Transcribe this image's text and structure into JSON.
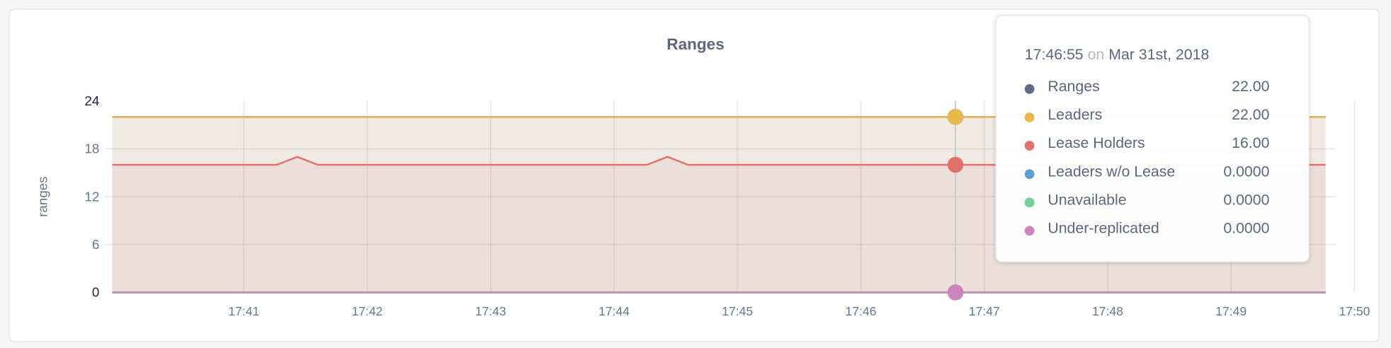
{
  "chart_data": {
    "type": "area",
    "title": "Ranges",
    "ylabel": "ranges",
    "xlabel": "",
    "ylim": [
      0,
      24
    ],
    "yticks": [
      "0",
      "6",
      "12",
      "18",
      "24"
    ],
    "xticks": [
      "17:41",
      "17:42",
      "17:43",
      "17:44",
      "17:45",
      "17:46",
      "17:47",
      "17:48",
      "17:49",
      "17:50"
    ],
    "grid": true,
    "x": [
      "17:40:05",
      "17:40:15",
      "17:40:25",
      "17:40:35",
      "17:40:45",
      "17:40:55",
      "17:41:05",
      "17:41:15",
      "17:41:25",
      "17:41:35",
      "17:41:45",
      "17:41:55",
      "17:42:05",
      "17:42:15",
      "17:42:25",
      "17:42:35",
      "17:42:45",
      "17:42:55",
      "17:43:05",
      "17:43:15",
      "17:43:25",
      "17:43:35",
      "17:43:45",
      "17:43:55",
      "17:44:05",
      "17:44:15",
      "17:44:25",
      "17:44:35",
      "17:44:45",
      "17:44:55",
      "17:45:05",
      "17:45:15",
      "17:45:25",
      "17:45:35",
      "17:45:45",
      "17:45:55",
      "17:46:05",
      "17:46:15",
      "17:46:25",
      "17:46:35",
      "17:46:45",
      "17:46:55",
      "17:47:05",
      "17:47:15",
      "17:47:25",
      "17:47:35",
      "17:47:45",
      "17:47:55",
      "17:48:05",
      "17:48:15",
      "17:48:25",
      "17:48:35",
      "17:48:45",
      "17:48:55",
      "17:49:05",
      "17:49:15",
      "17:49:25",
      "17:49:35",
      "17:49:45",
      "17:49:55"
    ],
    "series": [
      {
        "name": "Ranges",
        "color": "#5f6b87",
        "values": [
          22,
          22,
          22,
          22,
          22,
          22,
          22,
          22,
          22,
          22,
          22,
          22,
          22,
          22,
          22,
          22,
          22,
          22,
          22,
          22,
          22,
          22,
          22,
          22,
          22,
          22,
          22,
          22,
          22,
          22,
          22,
          22,
          22,
          22,
          22,
          22,
          22,
          22,
          22,
          22,
          22,
          22,
          22,
          22,
          22,
          22,
          22,
          22,
          22,
          22,
          22,
          22,
          22,
          22,
          22,
          22,
          22,
          22,
          22,
          22
        ]
      },
      {
        "name": "Leaders",
        "color": "#e8b94a",
        "fill": "#efebe4",
        "values": [
          22,
          22,
          22,
          22,
          22,
          22,
          22,
          22,
          22,
          22,
          22,
          22,
          22,
          22,
          22,
          22,
          22,
          22,
          22,
          22,
          22,
          22,
          22,
          22,
          22,
          22,
          22,
          22,
          22,
          22,
          22,
          22,
          22,
          22,
          22,
          22,
          22,
          22,
          22,
          22,
          22,
          22,
          22,
          22,
          22,
          22,
          22,
          22,
          22,
          22,
          22,
          22,
          22,
          22,
          22,
          22,
          22,
          22,
          22,
          22
        ]
      },
      {
        "name": "Lease Holders",
        "color": "#e2716d",
        "fill": "#ecdfd9",
        "values": [
          16,
          16,
          16,
          16,
          16,
          16,
          16,
          16,
          16,
          17,
          16,
          16,
          16,
          16,
          16,
          16,
          16,
          16,
          16,
          16,
          16,
          16,
          16,
          16,
          16,
          16,
          16,
          17,
          16,
          16,
          16,
          16,
          16,
          16,
          16,
          16,
          16,
          16,
          16,
          16,
          16,
          16,
          16,
          16,
          16,
          16,
          16,
          16,
          16,
          16,
          16,
          16,
          16,
          16,
          16,
          16,
          16,
          16,
          16,
          16
        ]
      },
      {
        "name": "Leaders w/o Lease",
        "color": "#5a9fd4",
        "values": [
          0,
          0,
          0,
          0,
          0,
          0,
          0,
          0,
          0,
          0,
          0,
          0,
          0,
          0,
          0,
          0,
          0,
          0,
          0,
          0,
          0,
          0,
          0,
          0,
          0,
          0,
          0,
          0,
          0,
          0,
          0,
          0,
          0,
          0,
          0,
          0,
          0,
          0,
          0,
          0,
          0,
          0,
          0,
          0,
          0,
          0,
          0,
          0,
          0,
          0,
          0,
          0,
          0,
          0,
          0,
          0,
          0,
          0,
          0,
          0
        ]
      },
      {
        "name": "Unavailable",
        "color": "#6fd38f",
        "values": [
          0,
          0,
          0,
          0,
          0,
          0,
          0,
          0,
          0,
          0,
          0,
          0,
          0,
          0,
          0,
          0,
          0,
          0,
          0,
          0,
          0,
          0,
          0,
          0,
          0,
          0,
          0,
          0,
          0,
          0,
          0,
          0,
          0,
          0,
          0,
          0,
          0,
          0,
          0,
          0,
          0,
          0,
          0,
          0,
          0,
          0,
          0,
          0,
          0,
          0,
          0,
          0,
          0,
          0,
          0,
          0,
          0,
          0,
          0,
          0
        ]
      },
      {
        "name": "Under-replicated",
        "color": "#cb84bd",
        "values": [
          0,
          0,
          0,
          0,
          0,
          0,
          0,
          0,
          0,
          0,
          0,
          0,
          0,
          0,
          0,
          0,
          0,
          0,
          0,
          0,
          0,
          0,
          0,
          0,
          0,
          0,
          0,
          0,
          0,
          0,
          0,
          0,
          0,
          0,
          0,
          0,
          0,
          0,
          0,
          0,
          0,
          0,
          0,
          0,
          0,
          0,
          0,
          0,
          0,
          0,
          0,
          0,
          0,
          0,
          0,
          0,
          0,
          0,
          0,
          0
        ]
      }
    ],
    "hover": "17:46:55"
  },
  "tooltip": {
    "time": "17:46:55",
    "on": "on",
    "date": "Mar 31st, 2018",
    "rows": [
      {
        "label": "Ranges",
        "value": "22.00",
        "color": "#5f6b87"
      },
      {
        "label": "Leaders",
        "value": "22.00",
        "color": "#e8b94a"
      },
      {
        "label": "Lease Holders",
        "value": "16.00",
        "color": "#e2716d"
      },
      {
        "label": "Leaders w/o Lease",
        "value": "0.0000",
        "color": "#5a9fd4"
      },
      {
        "label": "Unavailable",
        "value": "0.0000",
        "color": "#6fd38f"
      },
      {
        "label": "Under-replicated",
        "value": "0.0000",
        "color": "#cb84bd"
      }
    ]
  }
}
